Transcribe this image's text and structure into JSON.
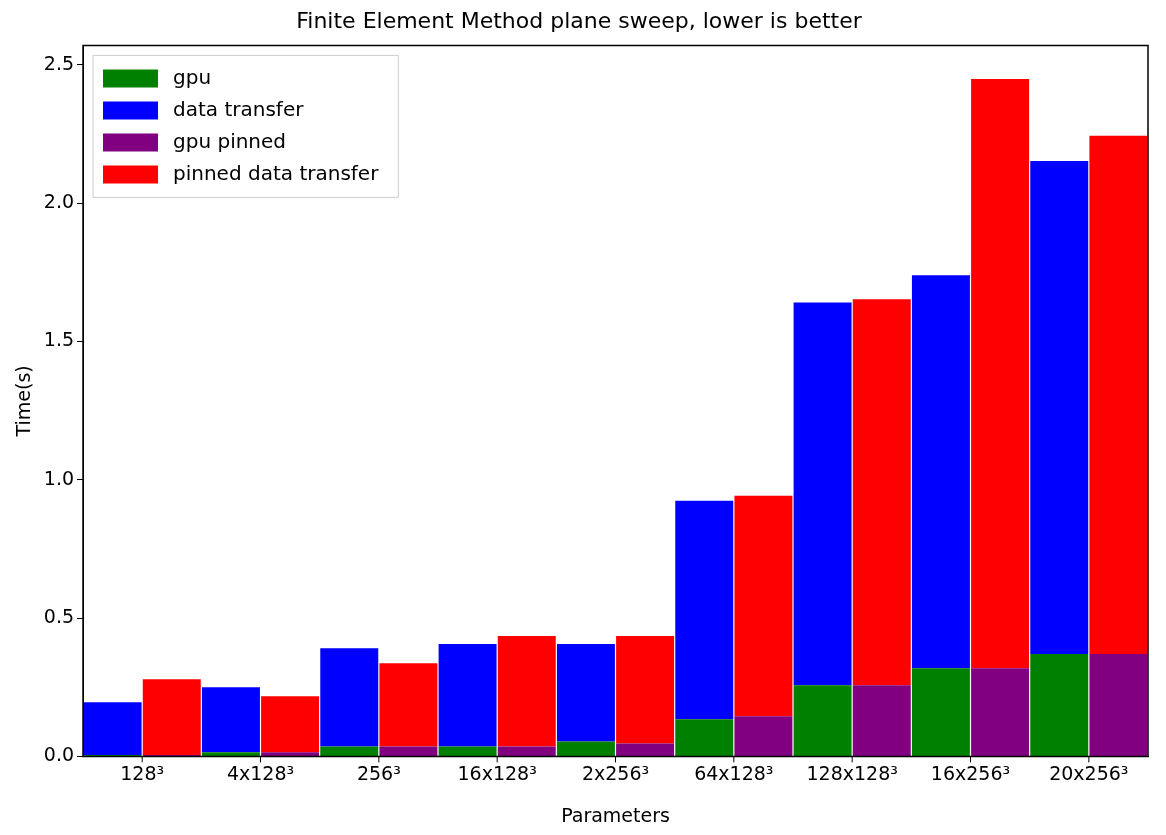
{
  "chart_data": {
    "type": "bar",
    "title": "Finite Element Method plane sweep, lower is better",
    "xlabel": "Parameters",
    "ylabel": "Time(s)",
    "stacked": true,
    "categories": [
      "128³",
      null,
      "4x128³",
      null,
      "256³",
      null,
      "16x128³",
      null,
      "2x256³",
      null,
      "64x128³",
      null,
      "128x128³",
      null,
      "16x256³",
      null,
      "20x256³",
      null
    ],
    "series": [
      {
        "name": "gpu",
        "color": "#008000",
        "values": [
          0.005,
          null,
          0.015,
          null,
          0.036,
          null,
          0.036,
          null,
          0.054,
          null,
          0.134,
          null,
          0.257,
          null,
          0.319,
          null,
          0.37,
          null
        ]
      },
      {
        "name": "data transfer",
        "color": "#0000ff",
        "values": [
          0.191,
          null,
          0.235,
          null,
          0.355,
          null,
          0.37,
          null,
          0.352,
          null,
          0.79,
          null,
          1.384,
          null,
          1.42,
          null,
          1.782,
          null
        ]
      },
      {
        "name": "gpu pinned",
        "color": "#800080",
        "values": [
          null,
          0.005,
          null,
          0.015,
          null,
          0.036,
          null,
          0.036,
          null,
          0.047,
          null,
          0.145,
          null,
          0.257,
          null,
          0.319,
          null,
          0.37
        ]
      },
      {
        "name": "pinned data transfer",
        "color": "#ff0000",
        "values": [
          null,
          0.274,
          null,
          0.202,
          null,
          0.301,
          null,
          0.399,
          null,
          0.388,
          null,
          0.797,
          null,
          1.395,
          null,
          2.13,
          null,
          1.873
        ]
      }
    ],
    "ylim": [
      0,
      2.57
    ],
    "yticks": [
      {
        "value": 0,
        "label": "0.0"
      },
      {
        "value": 0.5,
        "label": "0.5"
      },
      {
        "value": 1,
        "label": "1.0"
      },
      {
        "value": 1.5,
        "label": "1.5"
      },
      {
        "value": 2,
        "label": "2.0"
      },
      {
        "value": 2.5,
        "label": "2.5"
      }
    ],
    "legend": "top left"
  }
}
